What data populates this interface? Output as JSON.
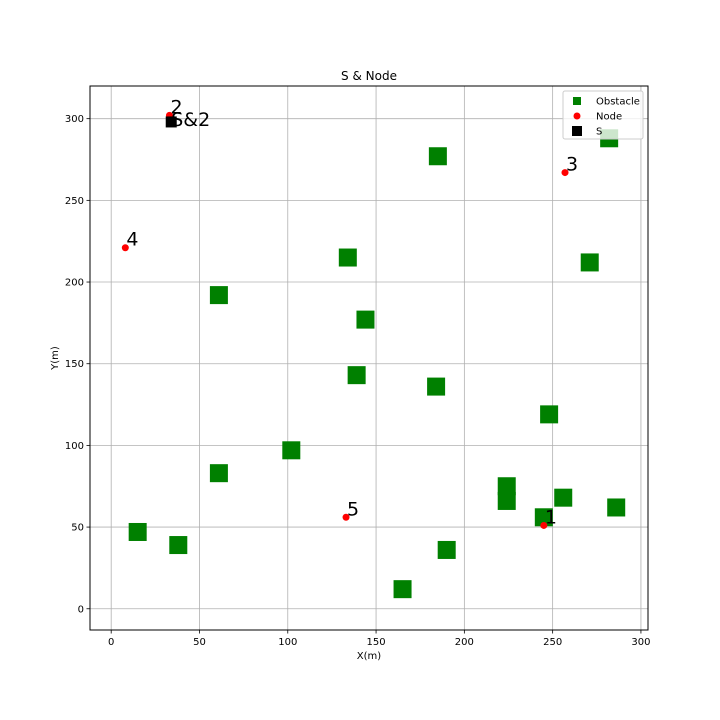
{
  "chart_data": {
    "type": "scatter",
    "title": "S & Node",
    "xlabel": "X(m)",
    "ylabel": "Y(m)",
    "xlim": [
      -12,
      304
    ],
    "ylim": [
      -13,
      320
    ],
    "xticks": [
      0,
      50,
      100,
      150,
      200,
      250,
      300
    ],
    "yticks": [
      0,
      50,
      100,
      150,
      200,
      250,
      300
    ],
    "grid": true,
    "legend_position": "top-right",
    "series": [
      {
        "name": "Obstacle",
        "marker": "square",
        "color": "#008000",
        "points": [
          [
            15,
            47
          ],
          [
            38,
            39
          ],
          [
            61,
            192
          ],
          [
            61,
            83
          ],
          [
            102,
            97
          ],
          [
            134,
            215
          ],
          [
            139,
            143
          ],
          [
            144,
            177
          ],
          [
            165,
            12
          ],
          [
            184,
            136
          ],
          [
            185,
            277
          ],
          [
            190,
            36
          ],
          [
            224,
            75
          ],
          [
            224,
            66
          ],
          [
            245,
            56
          ],
          [
            248,
            119
          ],
          [
            256,
            68
          ],
          [
            271,
            212
          ],
          [
            282,
            288
          ],
          [
            286,
            62
          ]
        ]
      },
      {
        "name": "Node",
        "marker": "circle",
        "color": "#ff0000",
        "points": [
          {
            "x": 245,
            "y": 51,
            "label": "1"
          },
          {
            "x": 33,
            "y": 302,
            "label": "2"
          },
          {
            "x": 257,
            "y": 267,
            "label": "3"
          },
          {
            "x": 8,
            "y": 221,
            "label": "4"
          },
          {
            "x": 133,
            "y": 56,
            "label": "5"
          }
        ]
      },
      {
        "name": "S",
        "marker": "square",
        "color": "#000000",
        "points": [
          {
            "x": 34,
            "y": 298,
            "label": "S&2"
          }
        ]
      }
    ]
  }
}
